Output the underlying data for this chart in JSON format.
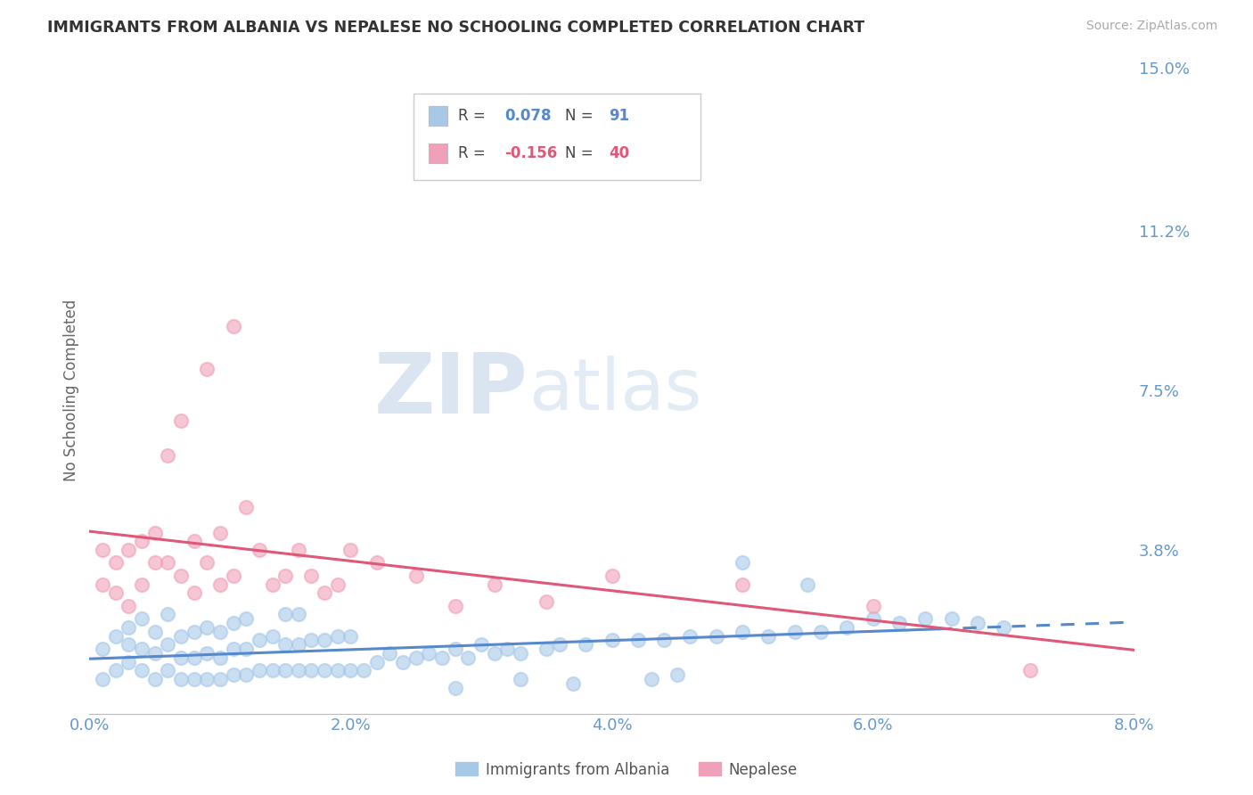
{
  "title": "IMMIGRANTS FROM ALBANIA VS NEPALESE NO SCHOOLING COMPLETED CORRELATION CHART",
  "source": "Source: ZipAtlas.com",
  "ylabel": "No Schooling Completed",
  "xlim": [
    0.0,
    0.08
  ],
  "ylim": [
    0.0,
    0.15
  ],
  "xtick_labels": [
    "0.0%",
    "2.0%",
    "4.0%",
    "6.0%",
    "8.0%"
  ],
  "xtick_vals": [
    0.0,
    0.02,
    0.04,
    0.06,
    0.08
  ],
  "ytick_labels_right": [
    "3.8%",
    "7.5%",
    "11.2%",
    "15.0%"
  ],
  "ytick_vals_right": [
    0.038,
    0.075,
    0.112,
    0.15
  ],
  "color_albania": "#a8c8e8",
  "color_nepal": "#f0a0b8",
  "color_line_albania": "#5588cc",
  "color_line_nepal": "#e05878",
  "color_axis_labels": "#6699cc",
  "R_albania": 0.078,
  "N_albania": 91,
  "R_nepal": -0.156,
  "N_nepal": 40,
  "legend_label_albania": "Immigrants from Albania",
  "legend_label_nepal": "Nepalese",
  "watermark_zip": "ZIP",
  "watermark_atlas": "atlas",
  "background_color": "#ffffff",
  "grid_color": "#ddddee",
  "albania_x": [
    0.001,
    0.001,
    0.002,
    0.002,
    0.003,
    0.003,
    0.003,
    0.004,
    0.004,
    0.004,
    0.005,
    0.005,
    0.005,
    0.006,
    0.006,
    0.006,
    0.007,
    0.007,
    0.007,
    0.008,
    0.008,
    0.008,
    0.009,
    0.009,
    0.009,
    0.01,
    0.01,
    0.01,
    0.011,
    0.011,
    0.011,
    0.012,
    0.012,
    0.012,
    0.013,
    0.013,
    0.014,
    0.014,
    0.015,
    0.015,
    0.015,
    0.016,
    0.016,
    0.016,
    0.017,
    0.017,
    0.018,
    0.018,
    0.019,
    0.019,
    0.02,
    0.02,
    0.021,
    0.022,
    0.023,
    0.024,
    0.025,
    0.026,
    0.027,
    0.028,
    0.029,
    0.03,
    0.031,
    0.032,
    0.033,
    0.035,
    0.036,
    0.038,
    0.04,
    0.042,
    0.044,
    0.046,
    0.048,
    0.05,
    0.052,
    0.054,
    0.056,
    0.058,
    0.06,
    0.062,
    0.064,
    0.066,
    0.068,
    0.07,
    0.05,
    0.055,
    0.043,
    0.037,
    0.028,
    0.033,
    0.045
  ],
  "albania_y": [
    0.008,
    0.015,
    0.01,
    0.018,
    0.012,
    0.016,
    0.02,
    0.01,
    0.015,
    0.022,
    0.008,
    0.014,
    0.019,
    0.01,
    0.016,
    0.023,
    0.008,
    0.013,
    0.018,
    0.008,
    0.013,
    0.019,
    0.008,
    0.014,
    0.02,
    0.008,
    0.013,
    0.019,
    0.009,
    0.015,
    0.021,
    0.009,
    0.015,
    0.022,
    0.01,
    0.017,
    0.01,
    0.018,
    0.01,
    0.016,
    0.023,
    0.01,
    0.016,
    0.023,
    0.01,
    0.017,
    0.01,
    0.017,
    0.01,
    0.018,
    0.01,
    0.018,
    0.01,
    0.012,
    0.014,
    0.012,
    0.013,
    0.014,
    0.013,
    0.015,
    0.013,
    0.016,
    0.014,
    0.015,
    0.014,
    0.015,
    0.016,
    0.016,
    0.017,
    0.017,
    0.017,
    0.018,
    0.018,
    0.019,
    0.018,
    0.019,
    0.019,
    0.02,
    0.022,
    0.021,
    0.022,
    0.022,
    0.021,
    0.02,
    0.035,
    0.03,
    0.008,
    0.007,
    0.006,
    0.008,
    0.009
  ],
  "nepal_x": [
    0.001,
    0.001,
    0.002,
    0.002,
    0.003,
    0.003,
    0.004,
    0.004,
    0.005,
    0.005,
    0.006,
    0.006,
    0.007,
    0.007,
    0.008,
    0.008,
    0.009,
    0.009,
    0.01,
    0.01,
    0.011,
    0.011,
    0.012,
    0.013,
    0.014,
    0.015,
    0.016,
    0.017,
    0.018,
    0.019,
    0.02,
    0.022,
    0.025,
    0.028,
    0.031,
    0.035,
    0.04,
    0.05,
    0.06,
    0.072
  ],
  "nepal_y": [
    0.03,
    0.038,
    0.028,
    0.035,
    0.025,
    0.038,
    0.03,
    0.04,
    0.035,
    0.042,
    0.06,
    0.035,
    0.032,
    0.068,
    0.028,
    0.04,
    0.035,
    0.08,
    0.03,
    0.042,
    0.032,
    0.09,
    0.048,
    0.038,
    0.03,
    0.032,
    0.038,
    0.032,
    0.028,
    0.03,
    0.038,
    0.035,
    0.032,
    0.025,
    0.03,
    0.026,
    0.032,
    0.03,
    0.025,
    0.01
  ]
}
